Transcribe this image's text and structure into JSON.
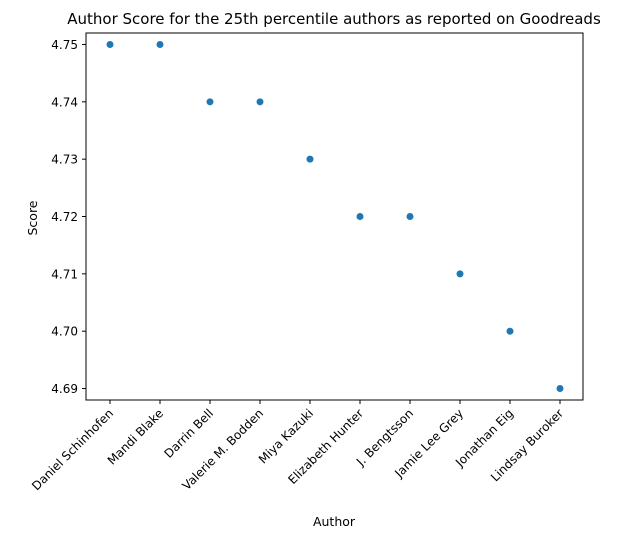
{
  "chart_data": {
    "type": "scatter",
    "title": "Author Score for the 25th percentile authors as reported on Goodreads",
    "xlabel": "Author",
    "ylabel": "Score",
    "categories": [
      "Daniel Schinhofen",
      "Mandi Blake",
      "Darrin Bell",
      "Valerie M. Bodden",
      "Miya Kazuki",
      "Elizabeth  Hunter",
      "J. Bengtsson",
      "Jamie Lee Grey",
      "Jonathan Eig",
      "Lindsay Buroker"
    ],
    "values": [
      4.75,
      4.75,
      4.74,
      4.74,
      4.73,
      4.72,
      4.72,
      4.71,
      4.7,
      4.69
    ],
    "yticks": [
      "4.69",
      "4.70",
      "4.71",
      "4.72",
      "4.73",
      "4.74",
      "4.75"
    ],
    "ylim": [
      4.688,
      4.752
    ],
    "grid": false,
    "marker_color": "#1f77b4"
  }
}
